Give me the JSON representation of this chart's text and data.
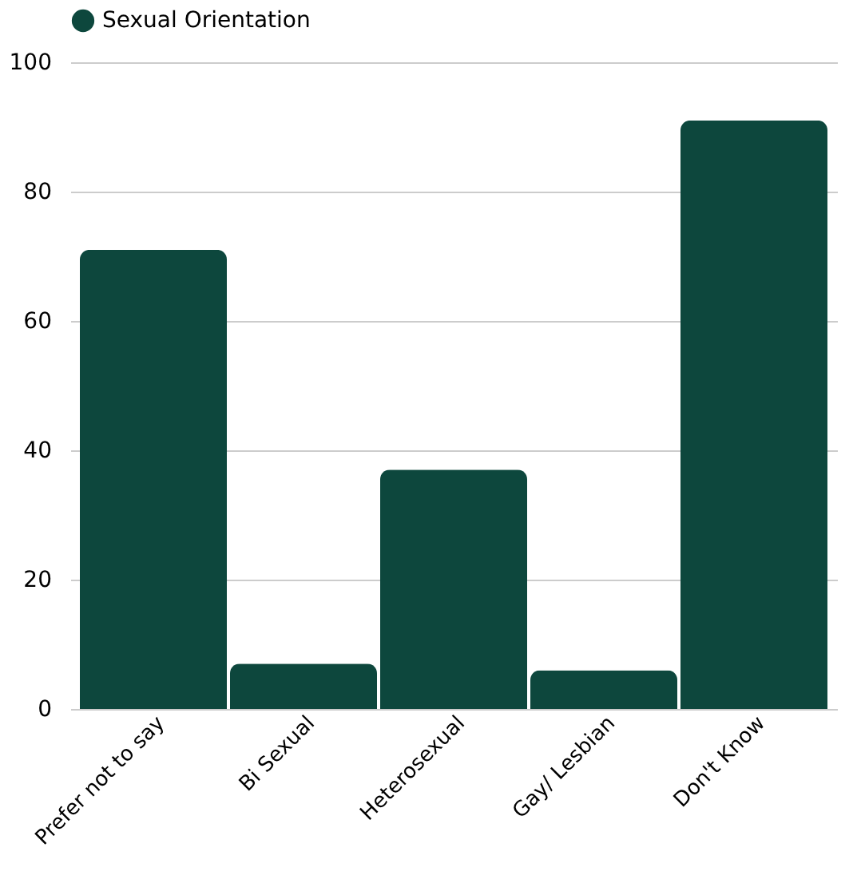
{
  "chart_data": {
    "type": "bar",
    "categories": [
      "Prefer not to say",
      "Bi Sexual",
      "Heterosexual",
      "Gay/ Lesbian",
      "Don't Know"
    ],
    "series": [
      {
        "name": "Sexual Orientation",
        "color": "#0d473d",
        "values": [
          71,
          7,
          37,
          6,
          91
        ]
      }
    ],
    "ylim": [
      0,
      100
    ],
    "yticks": [
      0,
      20,
      40,
      60,
      80,
      100
    ],
    "grid": "y",
    "legend": "top"
  }
}
